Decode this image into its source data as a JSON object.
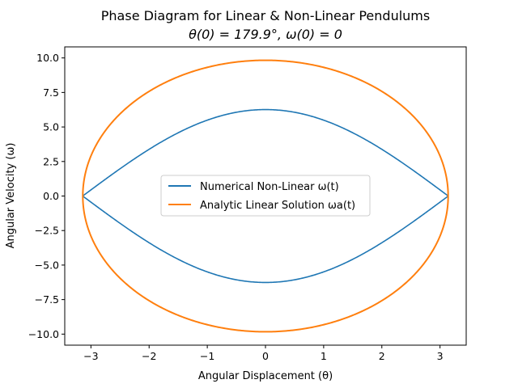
{
  "chart_data": {
    "type": "line",
    "title": "Phase Diagram for Linear & Non-Linear Pendulums",
    "subtitle": "θ(0) = 179.9°, ω(0) = 0",
    "xlabel": "Angular Displacement (θ)",
    "ylabel": "Angular Velocity (ω)",
    "xlim": [
      -3.45,
      3.45
    ],
    "ylim": [
      -10.8,
      10.8
    ],
    "xticks": [
      -3,
      -2,
      -1,
      0,
      1,
      2,
      3
    ],
    "xtick_labels": [
      "−3",
      "−2",
      "−1",
      "0",
      "1",
      "2",
      "3"
    ],
    "yticks": [
      -10.0,
      -7.5,
      -5.0,
      -2.5,
      0.0,
      2.5,
      5.0,
      7.5,
      10.0
    ],
    "ytick_labels": [
      "−10.0",
      "−7.5",
      "−5.0",
      "−2.5",
      "0.0",
      "2.5",
      "5.0",
      "7.5",
      "10.0"
    ],
    "grid": false,
    "legend_position": "center",
    "series": [
      {
        "name": "Numerical Non-Linear  ω(t)",
        "color": "#1f77b4",
        "shape": "separatrix",
        "theta_max": 3.1398,
        "omega_max": 6.26,
        "x": [
          -3.14,
          -2.5,
          -2,
          -1.5,
          -1,
          -0.5,
          0,
          0.5,
          1,
          1.5,
          2,
          2.5,
          3.14
        ],
        "y_upper": [
          0,
          1.94,
          3.39,
          4.59,
          5.49,
          6.07,
          6.26,
          6.07,
          5.49,
          4.59,
          3.39,
          1.94,
          0
        ],
        "y_lower": [
          0,
          -1.94,
          -3.39,
          -4.59,
          -5.49,
          -6.07,
          -6.26,
          -6.07,
          -5.49,
          -4.59,
          -3.39,
          -1.94,
          0
        ]
      },
      {
        "name": "Analytic Linear Solution ωa(t)",
        "color": "#ff7f0e",
        "shape": "ellipse",
        "theta_max": 3.1398,
        "omega_max": 9.83,
        "x": [
          -3.14,
          -2.5,
          -2,
          -1.5,
          -1,
          -0.5,
          0,
          0.5,
          1,
          1.5,
          2,
          2.5,
          3.14
        ],
        "y_upper": [
          0,
          5.95,
          7.58,
          8.64,
          9.32,
          9.71,
          9.83,
          9.71,
          9.32,
          8.64,
          7.58,
          5.95,
          0
        ],
        "y_lower": [
          0,
          -5.95,
          -7.58,
          -8.64,
          -9.32,
          -9.71,
          -9.83,
          -9.71,
          -9.32,
          -8.64,
          -7.58,
          -5.95,
          0
        ]
      }
    ]
  }
}
